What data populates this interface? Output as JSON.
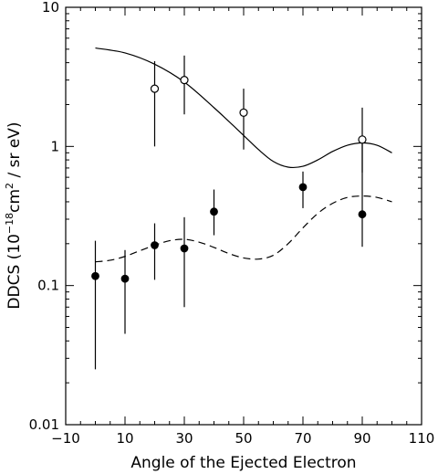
{
  "chart_data": {
    "type": "scatter",
    "title": "",
    "xlabel": "Angle of the Ejected Electron",
    "ylabel": {
      "prefix": "DDCS (10",
      "exp1": "−18",
      "mid": "cm",
      "exp2": "2",
      "suffix": " / sr eV)"
    },
    "xlim": [
      -10,
      110
    ],
    "ylim": [
      0.01,
      10
    ],
    "yscale": "log",
    "grid": false,
    "x_ticks": [
      -10,
      10,
      30,
      50,
      70,
      90,
      110
    ],
    "x_tick_labels": [
      "−10",
      "10",
      "30",
      "50",
      "70",
      "90",
      "110"
    ],
    "y_ticks": [
      0.01,
      0.1,
      1,
      10
    ],
    "y_tick_labels": [
      "0.01",
      "0.1",
      "1",
      "10"
    ],
    "series": [
      {
        "marker": "open-circle",
        "points": [
          {
            "x": 20,
            "y": 2.6,
            "ylo": 1.0,
            "yhi": 4.1
          },
          {
            "x": 30,
            "y": 3.0,
            "ylo": 1.7,
            "yhi": 4.5
          },
          {
            "x": 50,
            "y": 1.75,
            "ylo": 0.95,
            "yhi": 2.6
          },
          {
            "x": 90,
            "y": 1.12,
            "ylo": 0.65,
            "yhi": 1.9
          }
        ]
      },
      {
        "marker": "filled-circle",
        "points": [
          {
            "x": 0,
            "y": 0.117,
            "ylo": 0.025,
            "yhi": 0.21
          },
          {
            "x": 10,
            "y": 0.112,
            "ylo": 0.045,
            "yhi": 0.18
          },
          {
            "x": 20,
            "y": 0.195,
            "ylo": 0.11,
            "yhi": 0.28
          },
          {
            "x": 30,
            "y": 0.185,
            "ylo": 0.07,
            "yhi": 0.31
          },
          {
            "x": 40,
            "y": 0.34,
            "ylo": 0.23,
            "yhi": 0.49
          },
          {
            "x": 70,
            "y": 0.51,
            "ylo": 0.36,
            "yhi": 0.66
          },
          {
            "x": 90,
            "y": 0.325,
            "ylo": 0.19,
            "yhi": 1.1
          }
        ]
      },
      {
        "style": "solid-line",
        "x": [
          0,
          10,
          20,
          30,
          40,
          50,
          55,
          60,
          65,
          70,
          75,
          80,
          85,
          90,
          95,
          100
        ],
        "y": [
          5.1,
          4.7,
          3.9,
          2.9,
          1.9,
          1.2,
          0.95,
          0.78,
          0.71,
          0.72,
          0.8,
          0.92,
          1.02,
          1.06,
          1.02,
          0.9
        ]
      },
      {
        "style": "dashed-line",
        "x": [
          0,
          5,
          10,
          15,
          20,
          25,
          30,
          35,
          40,
          45,
          50,
          55,
          60,
          65,
          70,
          75,
          80,
          85,
          90,
          95,
          100
        ],
        "y": [
          0.148,
          0.152,
          0.162,
          0.178,
          0.195,
          0.21,
          0.215,
          0.205,
          0.188,
          0.17,
          0.158,
          0.155,
          0.165,
          0.2,
          0.26,
          0.33,
          0.39,
          0.43,
          0.44,
          0.43,
          0.4
        ]
      }
    ]
  }
}
